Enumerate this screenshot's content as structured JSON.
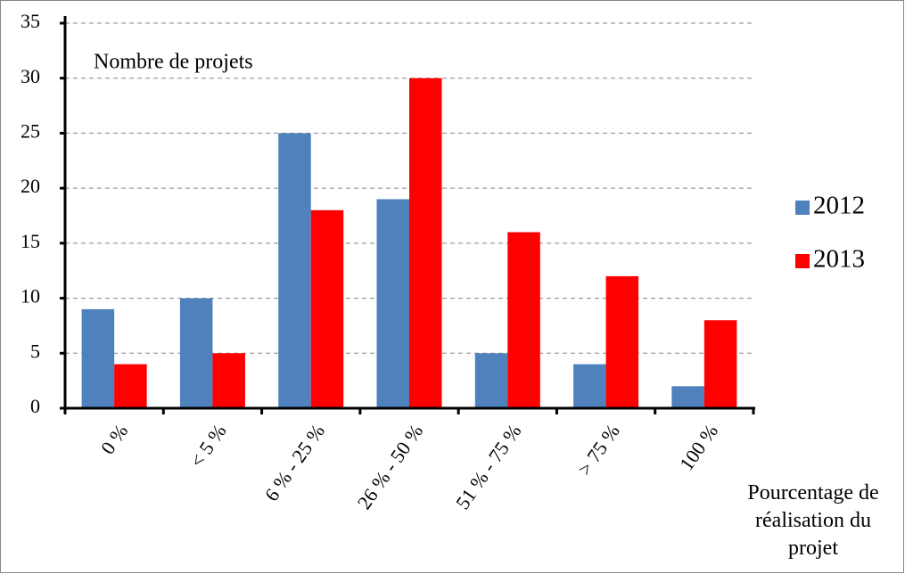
{
  "chart_data": {
    "type": "bar",
    "ylabel": "Nombre de projets",
    "xlabel": "Pourcentage de réalisation du projet",
    "categories": [
      "0 %",
      "< 5 %",
      "6 % - 25 %",
      "26 % - 50 %",
      "51 % - 75 %",
      "> 75 %",
      "100 %"
    ],
    "series": [
      {
        "name": "2012",
        "color": "#4f81bd",
        "values": [
          9,
          10,
          25,
          19,
          5,
          4,
          2
        ]
      },
      {
        "name": "2013",
        "color": "#ff0000",
        "values": [
          4,
          5,
          18,
          30,
          16,
          12,
          8
        ]
      }
    ],
    "ylim": [
      0,
      35
    ],
    "yticks": [
      0,
      5,
      10,
      15,
      20,
      25,
      30,
      35
    ],
    "grid": true,
    "legend": "right"
  }
}
